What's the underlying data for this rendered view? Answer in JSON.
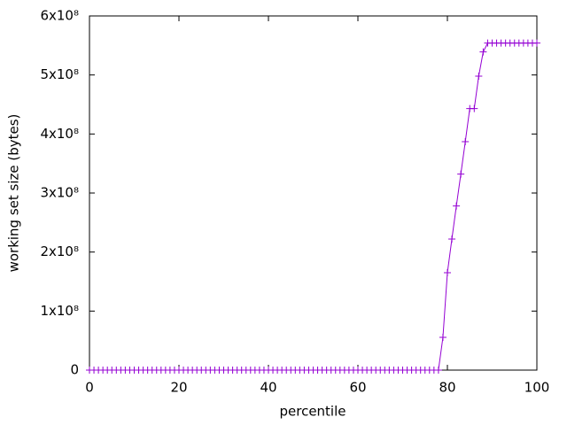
{
  "chart_data": {
    "type": "line",
    "xlabel": "percentile",
    "ylabel": "working set size (bytes)",
    "x": [
      0,
      1,
      2,
      3,
      4,
      5,
      6,
      7,
      8,
      9,
      10,
      11,
      12,
      13,
      14,
      15,
      16,
      17,
      18,
      19,
      20,
      21,
      22,
      23,
      24,
      25,
      26,
      27,
      28,
      29,
      30,
      31,
      32,
      33,
      34,
      35,
      36,
      37,
      38,
      39,
      40,
      41,
      42,
      43,
      44,
      45,
      46,
      47,
      48,
      49,
      50,
      51,
      52,
      53,
      54,
      55,
      56,
      57,
      58,
      59,
      60,
      61,
      62,
      63,
      64,
      65,
      66,
      67,
      68,
      69,
      70,
      71,
      72,
      73,
      74,
      75,
      76,
      77,
      78,
      79,
      80,
      81,
      82,
      83,
      84,
      85,
      86,
      87,
      88,
      89,
      90,
      91,
      92,
      93,
      94,
      95,
      96,
      97,
      98,
      99,
      100
    ],
    "series": [
      {
        "name": null,
        "color": "#9400d3",
        "values": [
          0,
          0,
          0,
          0,
          0,
          0,
          0,
          0,
          0,
          0,
          0,
          0,
          0,
          0,
          0,
          0,
          0,
          0,
          0,
          0,
          0,
          0,
          0,
          0,
          0,
          0,
          0,
          0,
          0,
          0,
          0,
          0,
          0,
          0,
          0,
          0,
          0,
          0,
          0,
          0,
          0,
          0,
          0,
          0,
          0,
          0,
          0,
          0,
          0,
          0,
          0,
          0,
          0,
          0,
          0,
          0,
          0,
          0,
          0,
          0,
          0,
          0,
          0,
          0,
          0,
          0,
          0,
          0,
          0,
          0,
          0,
          0,
          0,
          0,
          0,
          0,
          0,
          0,
          0,
          55500000,
          165000000,
          222000000,
          278000000,
          332000000,
          387000000,
          443000000,
          443000000,
          498000000,
          539000000,
          554000000,
          554000000,
          554000000,
          554000000,
          554000000,
          554000000,
          554000000,
          554000000,
          554000000,
          554000000,
          554000000,
          554000000
        ]
      }
    ],
    "xlim": [
      0,
      100
    ],
    "xticks": [
      0,
      20,
      40,
      60,
      80,
      100
    ],
    "ylim": [
      0,
      600000000
    ],
    "yticks": [
      0,
      {
        "value": 100000000,
        "label": "1x10⁸"
      },
      {
        "value": 200000000,
        "label": "2x10⁸"
      },
      {
        "value": 300000000,
        "label": "3x10⁸"
      },
      {
        "value": 400000000,
        "label": "4x10⁸"
      },
      {
        "value": 500000000,
        "label": "5x10⁸"
      },
      {
        "value": 600000000,
        "label": "6x10⁸"
      }
    ]
  }
}
